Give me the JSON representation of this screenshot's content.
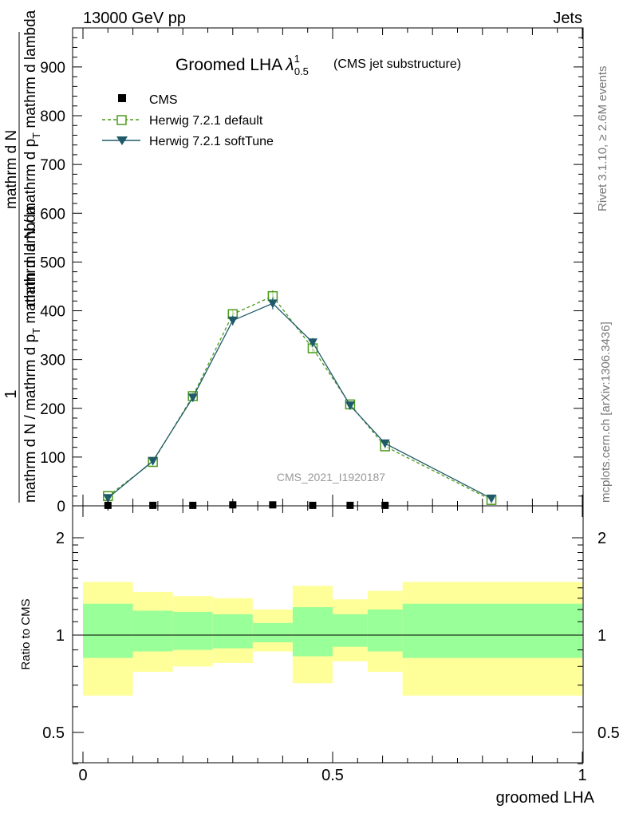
{
  "header": {
    "left": "13000 GeV pp",
    "right": "Jets"
  },
  "side": {
    "rivet": "Rivet 3.1.10, ≥ 2.6M events",
    "mcplots": "mcplots.cern.ch [arXiv:1306.3436]"
  },
  "colors": {
    "cms": "#000000",
    "default": "#4a9a1a",
    "softtune": "#1f5a6a",
    "band_inner": "#99ff99",
    "band_outer": "#ffff99"
  },
  "chart_data": [
    {
      "type": "line",
      "title": "Groomed LHA",
      "title_symbol": "λ",
      "title_sup": "1",
      "title_sub": "0.5",
      "subtitle": "(CMS jet substructure)",
      "watermark": "CMS_2021_I1920187",
      "ylabel": {
        "fraction_top": "1",
        "numerator": "mathrm d N / mathrm d p",
        "numerator_sub": "T",
        "numerator_tail": " mathrm d lambda",
        "denominator": "mathrm d N / mathrm d p",
        "denominator_sub": "T",
        "mathrm_dN": "mathrm d N"
      },
      "ylabel_lines": [
        "mathrm dN",
        "mathrm d p",
        "T",
        "mathrm d lambda",
        "mathrm d N / mathrm d p",
        "mathrm d p"
      ],
      "xlim": [
        0,
        1
      ],
      "ylim": [
        0,
        980
      ],
      "yticks": [
        0,
        100,
        200,
        300,
        400,
        500,
        600,
        700,
        800,
        900
      ],
      "legend": [
        "CMS",
        "Herwig 7.2.1 default",
        "Herwig 7.2.1 softTune"
      ],
      "series": [
        {
          "name": "CMS",
          "x": [
            0.05,
            0.14,
            0.22,
            0.3,
            0.38,
            0.46,
            0.535,
            0.605
          ],
          "y": [
            1,
            1,
            1,
            2,
            2,
            1,
            1,
            1
          ]
        },
        {
          "name": "Herwig 7.2.1 default",
          "x": [
            0.05,
            0.14,
            0.22,
            0.3,
            0.38,
            0.46,
            0.535,
            0.605,
            0.818
          ],
          "y": [
            20,
            90,
            225,
            393,
            430,
            323,
            208,
            122,
            12
          ],
          "err": [
            3,
            5,
            8,
            10,
            12,
            9,
            7,
            5,
            2
          ]
        },
        {
          "name": "Herwig 7.2.1 softTune",
          "x": [
            0.05,
            0.14,
            0.22,
            0.3,
            0.38,
            0.46,
            0.535,
            0.605,
            0.818
          ],
          "y": [
            16,
            92,
            222,
            380,
            415,
            335,
            206,
            128,
            15
          ],
          "err": [
            3,
            5,
            8,
            10,
            12,
            9,
            7,
            5,
            2
          ]
        }
      ]
    },
    {
      "type": "area",
      "ylabel": "Ratio to CMS",
      "xlabel": "groomed LHA",
      "xlim": [
        0,
        1
      ],
      "ylim": [
        0.35,
        2.3
      ],
      "yticks": [
        0.5,
        1,
        2
      ],
      "ytick_labels": [
        "0.5",
        "1",
        "2"
      ],
      "xticks": [
        0,
        0.5,
        1
      ],
      "xtick_labels": [
        "0",
        "0.5",
        "1"
      ],
      "bins": [
        {
          "lo": 0.0,
          "hi": 0.1,
          "inner": [
            0.85,
            1.25
          ],
          "outer": [
            0.65,
            1.46
          ]
        },
        {
          "lo": 0.1,
          "hi": 0.18,
          "inner": [
            0.89,
            1.19
          ],
          "outer": [
            0.77,
            1.36
          ]
        },
        {
          "lo": 0.18,
          "hi": 0.26,
          "inner": [
            0.9,
            1.18
          ],
          "outer": [
            0.8,
            1.32
          ]
        },
        {
          "lo": 0.26,
          "hi": 0.34,
          "inner": [
            0.91,
            1.16
          ],
          "outer": [
            0.82,
            1.3
          ]
        },
        {
          "lo": 0.34,
          "hi": 0.42,
          "inner": [
            0.95,
            1.09
          ],
          "outer": [
            0.89,
            1.2
          ]
        },
        {
          "lo": 0.42,
          "hi": 0.5,
          "inner": [
            0.86,
            1.22
          ],
          "outer": [
            0.71,
            1.42
          ]
        },
        {
          "lo": 0.5,
          "hi": 0.57,
          "inner": [
            0.92,
            1.16
          ],
          "outer": [
            0.83,
            1.29
          ]
        },
        {
          "lo": 0.57,
          "hi": 0.64,
          "inner": [
            0.89,
            1.2
          ],
          "outer": [
            0.77,
            1.37
          ]
        },
        {
          "lo": 0.64,
          "hi": 1.0,
          "inner": [
            0.85,
            1.25
          ],
          "outer": [
            0.65,
            1.46
          ]
        }
      ]
    }
  ]
}
